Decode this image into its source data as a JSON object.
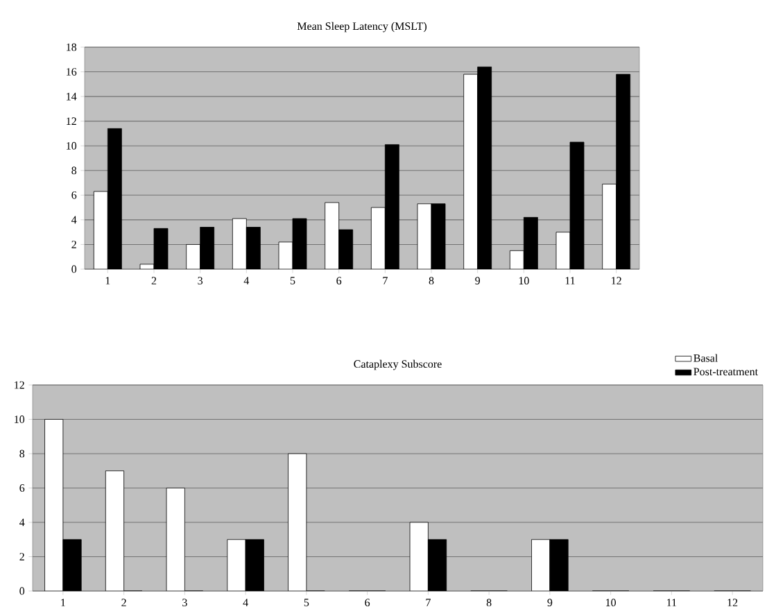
{
  "chart_data": [
    {
      "type": "bar",
      "title": "Mean Sleep Latency (MSLT)",
      "categories": [
        "1",
        "2",
        "3",
        "4",
        "5",
        "6",
        "7",
        "8",
        "9",
        "10",
        "11",
        "12"
      ],
      "series": [
        {
          "color": "#ffffff",
          "values": [
            6.3,
            0.4,
            2.0,
            4.1,
            2.2,
            5.4,
            5.0,
            5.3,
            15.8,
            1.5,
            3.0,
            6.9
          ]
        },
        {
          "color": "#000000",
          "values": [
            11.4,
            3.3,
            3.4,
            3.4,
            4.1,
            3.2,
            10.1,
            5.3,
            16.4,
            4.2,
            10.3,
            15.8
          ]
        }
      ],
      "ylim": [
        0,
        18
      ],
      "yticks": [
        0,
        2,
        4,
        6,
        8,
        10,
        12,
        14,
        16,
        18
      ],
      "grid": "y"
    },
    {
      "type": "bar",
      "title": "Cataplexy Subscore",
      "categories": [
        "1",
        "2",
        "3",
        "4",
        "5",
        "6",
        "7",
        "8",
        "9",
        "10",
        "11",
        "12"
      ],
      "series": [
        {
          "name": "Basal",
          "color": "#ffffff",
          "values": [
            10,
            7,
            6,
            3,
            8,
            0,
            4,
            0,
            3,
            0,
            0,
            0
          ]
        },
        {
          "name": "Post-treatment",
          "color": "#000000",
          "values": [
            3,
            0,
            0,
            3,
            0,
            0,
            3,
            0,
            3,
            0,
            0,
            0
          ]
        }
      ],
      "ylim": [
        0,
        12
      ],
      "yticks": [
        0,
        2,
        4,
        6,
        8,
        10,
        12
      ],
      "grid": "y",
      "legend": "top right"
    }
  ]
}
